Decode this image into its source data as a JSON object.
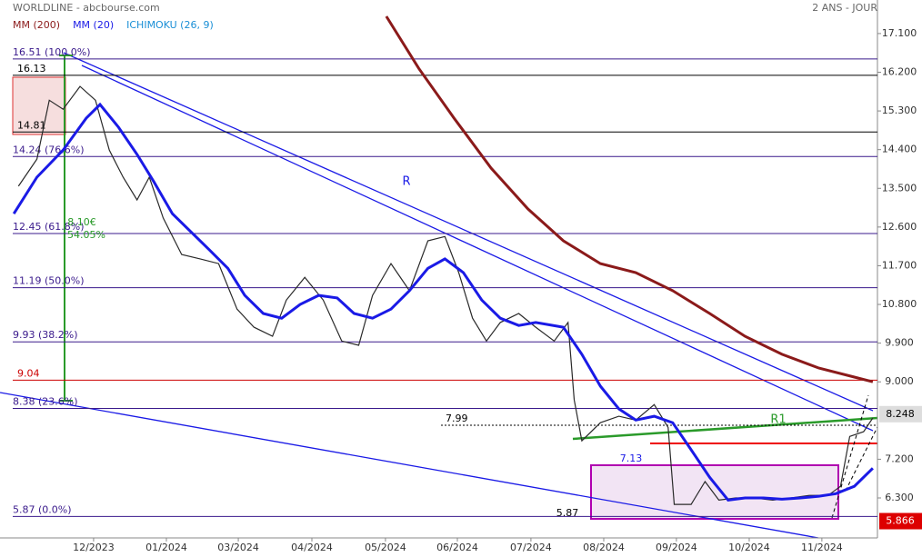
{
  "chart_data": {
    "type": "line",
    "title": "WORLDLINE - abcbourse.com",
    "subtitle": "2 ANS - JOUR",
    "xlim": [
      0,
      57
    ],
    "ylim": [
      5.37,
      17.88
    ],
    "xticks": [
      {
        "value": 6.08,
        "label": "12/2023"
      },
      {
        "value": 10.81,
        "label": "01/2024"
      },
      {
        "value": 15.48,
        "label": "03/2024"
      },
      {
        "value": 20.26,
        "label": "04/2024"
      },
      {
        "value": 25.04,
        "label": "05/2024"
      },
      {
        "value": 29.71,
        "label": "06/2024"
      },
      {
        "value": 34.49,
        "label": "07/2024"
      },
      {
        "value": 39.22,
        "label": "08/2024"
      },
      {
        "value": 43.94,
        "label": "09/2024"
      },
      {
        "value": 48.67,
        "label": "10/2024"
      },
      {
        "value": 53.39,
        "label": "11/2024"
      }
    ],
    "yticks": [
      {
        "value": 17.1,
        "label": "17.100"
      },
      {
        "value": 16.2,
        "label": "16.200"
      },
      {
        "value": 15.3,
        "label": "15.300"
      },
      {
        "value": 14.4,
        "label": "14.400"
      },
      {
        "value": 13.5,
        "label": "13.500"
      },
      {
        "value": 12.6,
        "label": "12.600"
      },
      {
        "value": 11.7,
        "label": "11.700"
      },
      {
        "value": 10.8,
        "label": "10.800"
      },
      {
        "value": 9.9,
        "label": "9.900"
      },
      {
        "value": 9.0,
        "label": "9.000"
      },
      {
        "value": 7.2,
        "label": "7.200"
      },
      {
        "value": 6.3,
        "label": "6.300"
      }
    ],
    "price": {
      "color": "#2a2a2a",
      "x": [
        1.2,
        2.4,
        3.2,
        4.1,
        5.2,
        6.2,
        7.1,
        8.0,
        8.9,
        9.7,
        10.6,
        11.8,
        13.0,
        14.2,
        15.4,
        16.5,
        17.7,
        18.6,
        19.8,
        21.0,
        22.2,
        23.3,
        24.2,
        25.4,
        26.6,
        27.8,
        28.9,
        29.8,
        30.7,
        31.6,
        32.5,
        33.7,
        34.8,
        36.0,
        36.9,
        37.3,
        37.8,
        39.0,
        40.2,
        41.3,
        42.5,
        43.4,
        43.8,
        44.9,
        45.8,
        46.7,
        47.8,
        49.0,
        50.2,
        51.4,
        52.6,
        53.8,
        54.6,
        55.2,
        56.1,
        56.7
      ],
      "values": [
        13.55,
        14.18,
        15.55,
        15.34,
        15.87,
        15.55,
        14.39,
        13.76,
        13.23,
        13.76,
        12.81,
        11.96,
        11.86,
        11.75,
        10.69,
        10.27,
        10.06,
        10.9,
        11.43,
        10.9,
        9.95,
        9.85,
        11.01,
        11.75,
        11.12,
        12.28,
        12.38,
        11.54,
        10.48,
        9.95,
        10.38,
        10.59,
        10.27,
        9.95,
        10.38,
        8.58,
        7.63,
        8.05,
        8.2,
        8.11,
        8.47,
        7.94,
        6.15,
        6.15,
        6.68,
        6.25,
        6.3,
        6.3,
        6.25,
        6.3,
        6.36,
        6.36,
        6.57,
        7.73,
        7.84,
        8.16
      ],
      "last": {
        "value": 8.248,
        "label": "8.248"
      }
    },
    "series": [
      {
        "name": "MM (200)",
        "color": "#8b1a1a",
        "x": [
          25.1,
          27.2,
          29.5,
          31.9,
          34.3,
          36.6,
          39.0,
          41.3,
          43.7,
          46.1,
          48.4,
          50.8,
          53.2,
          55.5,
          56.7
        ],
        "values": [
          17.5,
          16.29,
          15.13,
          13.97,
          13.02,
          12.28,
          11.75,
          11.54,
          11.12,
          10.59,
          10.06,
          9.64,
          9.32,
          9.11,
          9.0
        ]
      },
      {
        "name": "MM (20)",
        "color": "#1a1ae6",
        "x": [
          0.9,
          2.4,
          4.1,
          5.6,
          6.5,
          7.7,
          8.9,
          10.0,
          11.2,
          12.4,
          13.6,
          14.8,
          15.9,
          17.1,
          18.3,
          19.5,
          20.7,
          21.9,
          23.0,
          24.2,
          25.4,
          26.6,
          27.8,
          28.9,
          30.1,
          31.3,
          32.5,
          33.7,
          34.8,
          36.6,
          37.8,
          39.0,
          40.2,
          41.3,
          42.5,
          43.7,
          44.9,
          46.1,
          47.3,
          48.4,
          49.6,
          50.8,
          52.0,
          53.2,
          54.3,
          55.5,
          56.7
        ],
        "values": [
          12.91,
          13.76,
          14.39,
          15.13,
          15.45,
          14.92,
          14.29,
          13.65,
          12.91,
          12.49,
          12.07,
          11.64,
          11.01,
          10.59,
          10.48,
          10.8,
          11.01,
          10.95,
          10.59,
          10.48,
          10.69,
          11.12,
          11.64,
          11.86,
          11.54,
          10.9,
          10.48,
          10.31,
          10.38,
          10.27,
          9.64,
          8.9,
          8.37,
          8.11,
          8.2,
          8.05,
          7.42,
          6.78,
          6.25,
          6.3,
          6.3,
          6.27,
          6.3,
          6.34,
          6.4,
          6.57,
          6.99
        ]
      }
    ],
    "extra_legend": {
      "name": "ICHIMOKU (26, 9)",
      "color": "#1a8fd6"
    },
    "levels": [
      {
        "value": 16.51,
        "label": "16.51 (100.0%)",
        "color": "#3a1a8c"
      },
      {
        "value": 16.13,
        "color": "#000000"
      },
      {
        "value": 14.81,
        "color": "#000000"
      },
      {
        "value": 14.24,
        "label": "14.24 (76.6%)",
        "color": "#3a1a8c"
      },
      {
        "value": 12.45,
        "label": "12.45 (61.8%)",
        "color": "#3a1a8c"
      },
      {
        "value": 11.19,
        "label": "11.19 (50.0%)",
        "color": "#3a1a8c"
      },
      {
        "value": 9.93,
        "label": "9.93 (38.2%)",
        "color": "#3a1a8c"
      },
      {
        "value": 9.04,
        "color": "#cc0000"
      },
      {
        "value": 8.38,
        "label": "8.38 (23.6%)",
        "color": "#3a1a8c"
      },
      {
        "value": 7.99,
        "color": "#000000",
        "dotted": true
      },
      {
        "value": 5.87,
        "label": "5.87 (0.0%)",
        "color": "#3a1a8c"
      }
    ],
    "low_tag": {
      "value": 5.866,
      "label": "5.866"
    },
    "annotations": [
      "R",
      "R1",
      "7.13",
      "5.87",
      "8.10€",
      "54.05%"
    ]
  }
}
